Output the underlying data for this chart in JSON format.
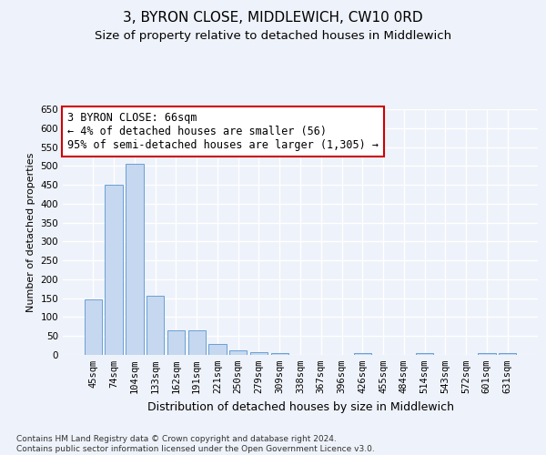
{
  "title": "3, BYRON CLOSE, MIDDLEWICH, CW10 0RD",
  "subtitle": "Size of property relative to detached houses in Middlewich",
  "xlabel": "Distribution of detached houses by size in Middlewich",
  "ylabel": "Number of detached properties",
  "categories": [
    "45sqm",
    "74sqm",
    "104sqm",
    "133sqm",
    "162sqm",
    "191sqm",
    "221sqm",
    "250sqm",
    "279sqm",
    "309sqm",
    "338sqm",
    "367sqm",
    "396sqm",
    "426sqm",
    "455sqm",
    "484sqm",
    "514sqm",
    "543sqm",
    "572sqm",
    "601sqm",
    "631sqm"
  ],
  "values": [
    148,
    450,
    506,
    157,
    65,
    65,
    30,
    13,
    8,
    5,
    0,
    0,
    0,
    5,
    0,
    0,
    5,
    0,
    0,
    5,
    5
  ],
  "bar_color": "#c5d8f0",
  "bar_edge_color": "#6a9fd4",
  "background_color": "#eef2fa",
  "grid_color": "#ffffff",
  "ylim": [
    0,
    650
  ],
  "yticks": [
    0,
    50,
    100,
    150,
    200,
    250,
    300,
    350,
    400,
    450,
    500,
    550,
    600,
    650
  ],
  "annotation_text": "3 BYRON CLOSE: 66sqm\n← 4% of detached houses are smaller (56)\n95% of semi-detached houses are larger (1,305) →",
  "annotation_box_color": "#ffffff",
  "annotation_box_edge_color": "#cc0000",
  "footnote": "Contains HM Land Registry data © Crown copyright and database right 2024.\nContains public sector information licensed under the Open Government Licence v3.0.",
  "title_fontsize": 11,
  "subtitle_fontsize": 9.5,
  "xlabel_fontsize": 9,
  "ylabel_fontsize": 8,
  "tick_fontsize": 7.5,
  "annotation_fontsize": 8.5,
  "footnote_fontsize": 6.5
}
